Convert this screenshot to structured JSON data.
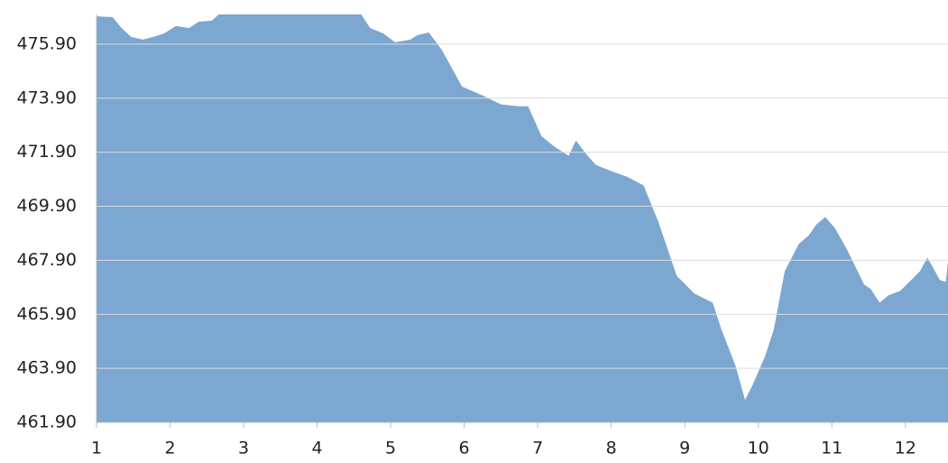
{
  "chart_data": {
    "type": "area",
    "color": "#7ba7d1",
    "grid": true,
    "x": [
      1,
      1.22,
      1.34,
      1.47,
      1.63,
      1.77,
      1.92,
      2.08,
      2.26,
      2.39,
      2.57,
      2.66,
      3.2,
      3.9,
      4.6,
      4.72,
      4.9,
      5.06,
      5.27,
      5.36,
      5.52,
      5.7,
      5.97,
      6.25,
      6.5,
      6.74,
      6.87,
      7.05,
      7.23,
      7.42,
      7.52,
      7.66,
      7.79,
      8.03,
      8.21,
      8.44,
      8.64,
      8.89,
      9.13,
      9.38,
      9.5,
      9.69,
      9.82,
      9.93,
      10.09,
      10.21,
      10.36,
      10.55,
      10.69,
      10.79,
      10.91,
      11.04,
      11.2,
      11.44,
      11.53,
      11.65,
      11.77,
      11.93,
      12.08,
      12.2,
      12.3,
      12.47,
      12.55,
      12.58
    ],
    "values": [
      476.93,
      476.9,
      476.5,
      476.17,
      476.07,
      476.17,
      476.3,
      476.57,
      476.5,
      476.73,
      476.77,
      477.0,
      477.3,
      477.3,
      477.0,
      476.5,
      476.3,
      475.97,
      476.07,
      476.23,
      476.33,
      475.67,
      474.33,
      474.0,
      473.67,
      473.6,
      473.6,
      472.5,
      472.1,
      471.77,
      472.33,
      471.83,
      471.43,
      471.17,
      471.0,
      470.67,
      469.33,
      467.33,
      466.67,
      466.33,
      465.33,
      464.0,
      462.73,
      463.33,
      464.33,
      465.33,
      467.5,
      468.5,
      468.83,
      469.23,
      469.5,
      469.1,
      468.33,
      467.0,
      466.83,
      466.33,
      466.6,
      466.77,
      467.17,
      467.5,
      468.0,
      467.17,
      467.1,
      467.83
    ],
    "xlim": [
      1,
      12.58
    ],
    "xticks": [
      1,
      2,
      3,
      4,
      5,
      6,
      7,
      8,
      9,
      10,
      11,
      12
    ],
    "ylim": [
      461.9,
      477.0
    ],
    "yticks": [
      {
        "value": 461.9,
        "label": "461.90"
      },
      {
        "value": 463.9,
        "label": "463.90"
      },
      {
        "value": 465.9,
        "label": "465.90"
      },
      {
        "value": 467.9,
        "label": "467.90"
      },
      {
        "value": 469.9,
        "label": "469.90"
      },
      {
        "value": 471.9,
        "label": "471.90"
      },
      {
        "value": 473.9,
        "label": "473.90"
      },
      {
        "value": 475.9,
        "label": "475.90"
      }
    ]
  }
}
